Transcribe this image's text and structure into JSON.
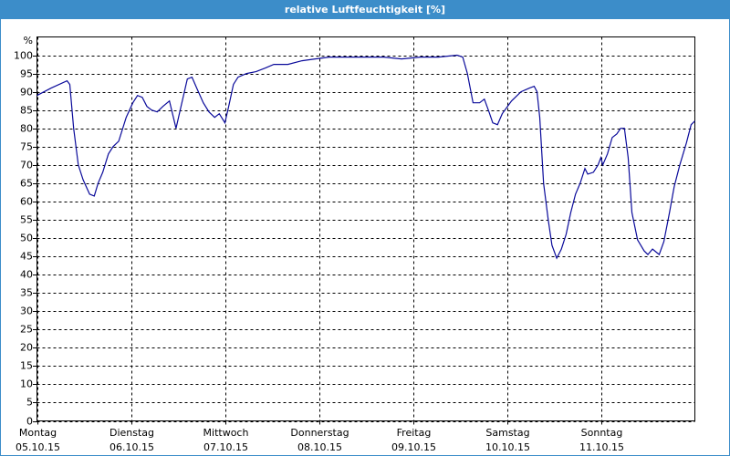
{
  "chart_data": {
    "type": "line",
    "title": "relative Luftfeuchtigkeit [%]",
    "y_label": "%",
    "color": "#0a0a9a",
    "grid": true,
    "xlim": [
      0,
      7
    ],
    "ylim": [
      0,
      105
    ],
    "yticks": [
      0,
      5,
      10,
      15,
      20,
      25,
      30,
      35,
      40,
      45,
      50,
      55,
      60,
      65,
      70,
      75,
      80,
      85,
      90,
      95,
      100
    ],
    "xticks": [
      {
        "value": 0,
        "label": "Montag",
        "sublabel": "05.10.15"
      },
      {
        "value": 1,
        "label": "Dienstag",
        "sublabel": "06.10.15"
      },
      {
        "value": 2,
        "label": "Mittwoch",
        "sublabel": "07.10.15"
      },
      {
        "value": 3,
        "label": "Donnerstag",
        "sublabel": "08.10.15"
      },
      {
        "value": 4,
        "label": "Freitag",
        "sublabel": "09.10.15"
      },
      {
        "value": 5,
        "label": "Samstag",
        "sublabel": "10.10.15"
      },
      {
        "value": 6,
        "label": "Sonntag",
        "sublabel": "11.10.15"
      }
    ],
    "x": [
      0,
      0.15,
      0.32,
      0.35,
      0.39,
      0.44,
      0.49,
      0.56,
      0.61,
      0.65,
      0.7,
      0.76,
      0.81,
      0.87,
      0.95,
      1.02,
      1.07,
      1.12,
      1.17,
      1.22,
      1.28,
      1.34,
      1.41,
      1.48,
      1.55,
      1.6,
      1.65,
      1.7,
      1.77,
      1.83,
      1.89,
      1.94,
      2.0,
      2.04,
      2.09,
      2.14,
      2.23,
      2.33,
      2.43,
      2.52,
      2.67,
      2.82,
      2.96,
      3.11,
      3.35,
      3.5,
      3.69,
      3.88,
      4.08,
      4.27,
      4.47,
      4.53,
      4.58,
      4.64,
      4.71,
      4.76,
      4.81,
      4.85,
      4.9,
      4.95,
      5.05,
      5.15,
      5.24,
      5.29,
      5.32,
      5.35,
      5.39,
      5.44,
      5.48,
      5.53,
      5.58,
      5.63,
      5.68,
      5.73,
      5.78,
      5.83,
      5.86,
      5.92,
      5.97,
      6.0,
      6.02,
      6.07,
      6.12,
      6.17,
      6.21,
      6.25,
      6.29,
      6.33,
      6.39,
      6.46,
      6.5,
      6.55,
      6.62,
      6.67,
      6.73,
      6.78,
      6.84,
      6.91,
      6.96,
      7.0
    ],
    "values": [
      89,
      91,
      93,
      92,
      80,
      70,
      66,
      62,
      61.5,
      65,
      68,
      73,
      75,
      76.5,
      83,
      87,
      89,
      88.5,
      86,
      85,
      84.5,
      86,
      87.5,
      80,
      88,
      93.5,
      94,
      91,
      87,
      84.5,
      83,
      84,
      81.5,
      86,
      92,
      94,
      95,
      95.5,
      96.5,
      97.5,
      97.5,
      98.5,
      99,
      99.5,
      99.5,
      99.5,
      99.5,
      99,
      99.5,
      99.5,
      100,
      99.5,
      95,
      87,
      87,
      88,
      84.5,
      81.5,
      81,
      84,
      87.5,
      90,
      91,
      91.5,
      90,
      83,
      65,
      55,
      48,
      44.5,
      47,
      51,
      57,
      62,
      65,
      69,
      67.5,
      68,
      70,
      72,
      70,
      73,
      77.5,
      78.5,
      80,
      80,
      72,
      57,
      49.5,
      46.5,
      45.5,
      47,
      45.5,
      49,
      57,
      64,
      70,
      76,
      81,
      82
    ]
  }
}
